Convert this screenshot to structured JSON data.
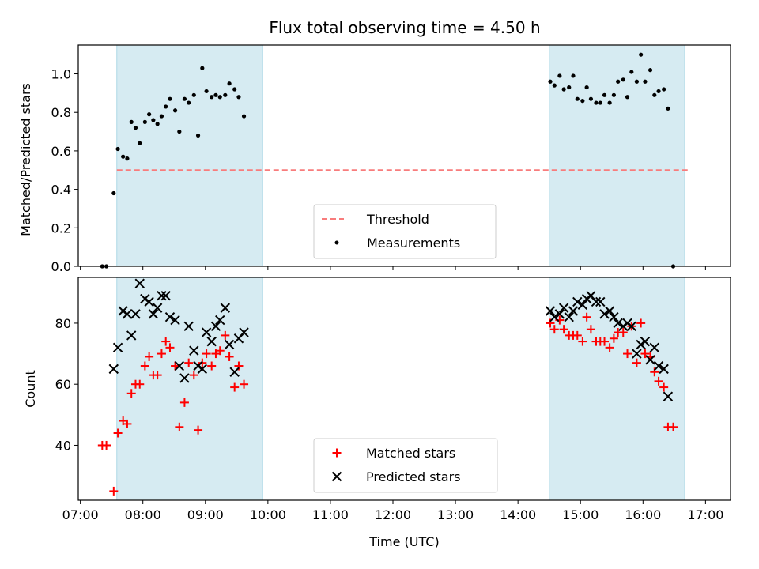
{
  "chart_data": {
    "title": "Flux total observing time = 4.50 h",
    "xlabel": "Time (UTC)",
    "x_ticks": [
      "07:00",
      "08:00",
      "09:00",
      "10:00",
      "11:00",
      "12:00",
      "13:00",
      "14:00",
      "15:00",
      "16:00",
      "17:00"
    ],
    "xlim": [
      "06:58",
      "17:24"
    ],
    "shaded_intervals": [
      [
        "07:35",
        "09:55"
      ],
      [
        "14:30",
        "16:40"
      ]
    ],
    "panels": [
      {
        "type": "scatter",
        "ylabel": "Matched/Predicted stars",
        "ylim": [
          0,
          1.15
        ],
        "y_ticks": [
          "0.0",
          "0.2",
          "0.4",
          "0.6",
          "0.8",
          "1.0"
        ],
        "legend_position": "lower-center",
        "threshold": {
          "name": "Threshold",
          "value": 0.5,
          "x_range": [
            "07:35",
            "16:45"
          ],
          "color": "#f87c7c"
        },
        "series": [
          {
            "name": "Measurements",
            "marker": "dot",
            "color": "#000000",
            "points": [
              [
                "07:21",
                0.0
              ],
              [
                "07:25",
                0.0
              ],
              [
                "07:32",
                0.38
              ],
              [
                "07:36",
                0.61
              ],
              [
                "07:41",
                0.57
              ],
              [
                "07:45",
                0.56
              ],
              [
                "07:49",
                0.75
              ],
              [
                "07:53",
                0.72
              ],
              [
                "07:57",
                0.64
              ],
              [
                "08:02",
                0.75
              ],
              [
                "08:06",
                0.79
              ],
              [
                "08:10",
                0.76
              ],
              [
                "08:14",
                0.74
              ],
              [
                "08:18",
                0.78
              ],
              [
                "08:22",
                0.83
              ],
              [
                "08:26",
                0.87
              ],
              [
                "08:31",
                0.81
              ],
              [
                "08:35",
                0.7
              ],
              [
                "08:40",
                0.87
              ],
              [
                "08:44",
                0.85
              ],
              [
                "08:49",
                0.89
              ],
              [
                "08:53",
                0.68
              ],
              [
                "08:57",
                1.03
              ],
              [
                "09:01",
                0.91
              ],
              [
                "09:06",
                0.88
              ],
              [
                "09:10",
                0.89
              ],
              [
                "09:14",
                0.88
              ],
              [
                "09:19",
                0.89
              ],
              [
                "09:23",
                0.95
              ],
              [
                "09:28",
                0.92
              ],
              [
                "09:32",
                0.88
              ],
              [
                "09:37",
                0.78
              ],
              [
                "14:31",
                0.96
              ],
              [
                "14:35",
                0.94
              ],
              [
                "14:40",
                0.99
              ],
              [
                "14:44",
                0.92
              ],
              [
                "14:49",
                0.93
              ],
              [
                "14:53",
                0.99
              ],
              [
                "14:57",
                0.87
              ],
              [
                "15:02",
                0.86
              ],
              [
                "15:06",
                0.93
              ],
              [
                "15:10",
                0.87
              ],
              [
                "15:15",
                0.85
              ],
              [
                "15:19",
                0.85
              ],
              [
                "15:23",
                0.89
              ],
              [
                "15:28",
                0.85
              ],
              [
                "15:32",
                0.89
              ],
              [
                "15:36",
                0.96
              ],
              [
                "15:41",
                0.97
              ],
              [
                "15:45",
                0.88
              ],
              [
                "15:49",
                1.01
              ],
              [
                "15:54",
                0.96
              ],
              [
                "15:58",
                1.1
              ],
              [
                "16:02",
                0.96
              ],
              [
                "16:07",
                1.02
              ],
              [
                "16:11",
                0.89
              ],
              [
                "16:15",
                0.91
              ],
              [
                "16:20",
                0.92
              ],
              [
                "16:24",
                0.82
              ],
              [
                "16:29",
                0.0
              ]
            ]
          }
        ]
      },
      {
        "type": "scatter",
        "ylabel": "Count",
        "ylim": [
          22,
          95
        ],
        "y_ticks": [
          "40",
          "60",
          "80"
        ],
        "legend_position": "lower-center",
        "series": [
          {
            "name": "Matched stars",
            "marker": "plus",
            "color": "#ff0000",
            "points": [
              [
                "07:21",
                40
              ],
              [
                "07:25",
                40
              ],
              [
                "07:32",
                25
              ],
              [
                "07:36",
                44
              ],
              [
                "07:41",
                48
              ],
              [
                "07:45",
                47
              ],
              [
                "07:49",
                57
              ],
              [
                "07:53",
                60
              ],
              [
                "07:57",
                60
              ],
              [
                "08:02",
                66
              ],
              [
                "08:06",
                69
              ],
              [
                "08:10",
                63
              ],
              [
                "08:14",
                63
              ],
              [
                "08:18",
                70
              ],
              [
                "08:22",
                74
              ],
              [
                "08:26",
                72
              ],
              [
                "08:31",
                66
              ],
              [
                "08:35",
                46
              ],
              [
                "08:40",
                54
              ],
              [
                "08:44",
                67
              ],
              [
                "08:49",
                63
              ],
              [
                "08:53",
                45
              ],
              [
                "08:57",
                67
              ],
              [
                "09:01",
                70
              ],
              [
                "09:06",
                66
              ],
              [
                "09:10",
                70
              ],
              [
                "09:14",
                71
              ],
              [
                "09:19",
                76
              ],
              [
                "09:23",
                69
              ],
              [
                "09:28",
                59
              ],
              [
                "09:32",
                66
              ],
              [
                "09:37",
                60
              ],
              [
                "14:31",
                80
              ],
              [
                "14:35",
                78
              ],
              [
                "14:40",
                81
              ],
              [
                "14:44",
                78
              ],
              [
                "14:49",
                76
              ],
              [
                "14:53",
                76
              ],
              [
                "14:57",
                76
              ],
              [
                "15:02",
                74
              ],
              [
                "15:06",
                82
              ],
              [
                "15:10",
                78
              ],
              [
                "15:15",
                74
              ],
              [
                "15:19",
                74
              ],
              [
                "15:23",
                74
              ],
              [
                "15:28",
                72
              ],
              [
                "15:32",
                75
              ],
              [
                "15:36",
                77
              ],
              [
                "15:41",
                77
              ],
              [
                "15:45",
                70
              ],
              [
                "15:49",
                79
              ],
              [
                "15:54",
                67
              ],
              [
                "15:58",
                80
              ],
              [
                "16:02",
                70
              ],
              [
                "16:07",
                69
              ],
              [
                "16:11",
                64
              ],
              [
                "16:15",
                61
              ],
              [
                "16:20",
                59
              ],
              [
                "16:24",
                46
              ],
              [
                "16:29",
                46
              ]
            ]
          },
          {
            "name": "Predicted stars",
            "marker": "x",
            "color": "#000000",
            "points": [
              [
                "07:32",
                65
              ],
              [
                "07:36",
                72
              ],
              [
                "07:41",
                84
              ],
              [
                "07:45",
                83
              ],
              [
                "07:49",
                76
              ],
              [
                "07:53",
                83
              ],
              [
                "07:57",
                93
              ],
              [
                "08:02",
                88
              ],
              [
                "08:06",
                87
              ],
              [
                "08:10",
                83
              ],
              [
                "08:14",
                85
              ],
              [
                "08:18",
                89
              ],
              [
                "08:22",
                89
              ],
              [
                "08:26",
                82
              ],
              [
                "08:31",
                81
              ],
              [
                "08:35",
                66
              ],
              [
                "08:40",
                62
              ],
              [
                "08:44",
                79
              ],
              [
                "08:49",
                71
              ],
              [
                "08:53",
                66
              ],
              [
                "08:57",
                65
              ],
              [
                "09:01",
                77
              ],
              [
                "09:06",
                74
              ],
              [
                "09:10",
                79
              ],
              [
                "09:14",
                81
              ],
              [
                "09:19",
                85
              ],
              [
                "09:23",
                73
              ],
              [
                "09:28",
                64
              ],
              [
                "09:32",
                75
              ],
              [
                "09:37",
                77
              ],
              [
                "14:31",
                84
              ],
              [
                "14:35",
                82
              ],
              [
                "14:40",
                83
              ],
              [
                "14:44",
                85
              ],
              [
                "14:49",
                82
              ],
              [
                "14:53",
                84
              ],
              [
                "14:57",
                87
              ],
              [
                "15:02",
                86
              ],
              [
                "15:06",
                88
              ],
              [
                "15:10",
                89
              ],
              [
                "15:15",
                87
              ],
              [
                "15:19",
                87
              ],
              [
                "15:23",
                83
              ],
              [
                "15:28",
                84
              ],
              [
                "15:32",
                82
              ],
              [
                "15:36",
                80
              ],
              [
                "15:41",
                79
              ],
              [
                "15:45",
                80
              ],
              [
                "15:49",
                79
              ],
              [
                "15:54",
                70
              ],
              [
                "15:58",
                73
              ],
              [
                "16:02",
                74
              ],
              [
                "16:07",
                68
              ],
              [
                "16:11",
                72
              ],
              [
                "16:15",
                66
              ],
              [
                "16:20",
                65
              ],
              [
                "16:24",
                56
              ]
            ]
          }
        ]
      }
    ]
  },
  "colors": {
    "shade_fill": "#add8e6",
    "shade_opacity": 0.5,
    "threshold": "#f87c7c",
    "matched": "#ff0000",
    "predicted": "#000000",
    "measurements": "#000000"
  }
}
